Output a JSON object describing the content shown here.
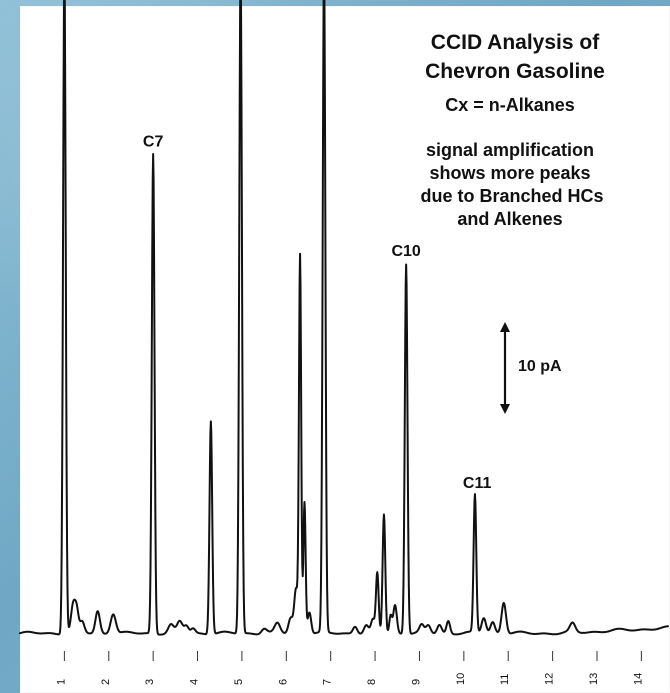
{
  "chart_data": {
    "type": "line",
    "title_lines": [
      "CCID Analysis of",
      "Chevron Gasoline"
    ],
    "annotations": [
      "Cx = n-Alkanes",
      "signal amplification",
      "shows more peaks",
      "due to Branched HCs",
      "and Alkenes"
    ],
    "scale_bar_label": "10 pA",
    "xlim": [
      0.0,
      14.6
    ],
    "ylim": [
      0,
      1
    ],
    "x_ticks": [
      "1",
      "2",
      "3",
      "4",
      "5",
      "6",
      "7",
      "8",
      "9",
      "10",
      "11",
      "12",
      "13",
      "14"
    ],
    "peak_labels": [
      {
        "label": "C7",
        "x": 3.0
      },
      {
        "label": "C10",
        "x": 8.7
      },
      {
        "label": "C11",
        "x": 10.3
      }
    ],
    "peaks": [
      {
        "x": 1.0,
        "y": 1.06,
        "w": 0.03
      },
      {
        "x": 1.2,
        "y": 0.045,
        "w": 0.05
      },
      {
        "x": 1.28,
        "y": 0.03,
        "w": 0.04
      },
      {
        "x": 1.4,
        "y": 0.018,
        "w": 0.05
      },
      {
        "x": 1.75,
        "y": 0.035,
        "w": 0.05
      },
      {
        "x": 2.1,
        "y": 0.032,
        "w": 0.06
      },
      {
        "x": 3.0,
        "y": 0.765,
        "w": 0.03
      },
      {
        "x": 3.4,
        "y": 0.013,
        "w": 0.06
      },
      {
        "x": 3.6,
        "y": 0.018,
        "w": 0.06
      },
      {
        "x": 3.75,
        "y": 0.012,
        "w": 0.05
      },
      {
        "x": 3.9,
        "y": 0.008,
        "w": 0.05
      },
      {
        "x": 4.3,
        "y": 0.34,
        "w": 0.03
      },
      {
        "x": 4.97,
        "y": 1.06,
        "w": 0.03
      },
      {
        "x": 5.5,
        "y": 0.008,
        "w": 0.06
      },
      {
        "x": 5.8,
        "y": 0.015,
        "w": 0.06
      },
      {
        "x": 6.1,
        "y": 0.025,
        "w": 0.05
      },
      {
        "x": 6.22,
        "y": 0.07,
        "w": 0.04
      },
      {
        "x": 6.31,
        "y": 0.6,
        "w": 0.025
      },
      {
        "x": 6.41,
        "y": 0.21,
        "w": 0.025
      },
      {
        "x": 6.52,
        "y": 0.035,
        "w": 0.04
      },
      {
        "x": 6.85,
        "y": 1.06,
        "w": 0.03
      },
      {
        "x": 7.55,
        "y": 0.012,
        "w": 0.05
      },
      {
        "x": 7.8,
        "y": 0.012,
        "w": 0.05
      },
      {
        "x": 7.95,
        "y": 0.02,
        "w": 0.04
      },
      {
        "x": 8.05,
        "y": 0.095,
        "w": 0.03
      },
      {
        "x": 8.2,
        "y": 0.19,
        "w": 0.03
      },
      {
        "x": 8.35,
        "y": 0.028,
        "w": 0.03
      },
      {
        "x": 8.45,
        "y": 0.045,
        "w": 0.04
      },
      {
        "x": 8.7,
        "y": 0.59,
        "w": 0.03
      },
      {
        "x": 9.05,
        "y": 0.012,
        "w": 0.05
      },
      {
        "x": 9.2,
        "y": 0.012,
        "w": 0.05
      },
      {
        "x": 9.45,
        "y": 0.014,
        "w": 0.05
      },
      {
        "x": 9.65,
        "y": 0.02,
        "w": 0.04
      },
      {
        "x": 10.25,
        "y": 0.22,
        "w": 0.03
      },
      {
        "x": 10.45,
        "y": 0.025,
        "w": 0.05
      },
      {
        "x": 10.65,
        "y": 0.018,
        "w": 0.05
      },
      {
        "x": 10.9,
        "y": 0.05,
        "w": 0.05
      },
      {
        "x": 12.45,
        "y": 0.014,
        "w": 0.06
      }
    ]
  }
}
